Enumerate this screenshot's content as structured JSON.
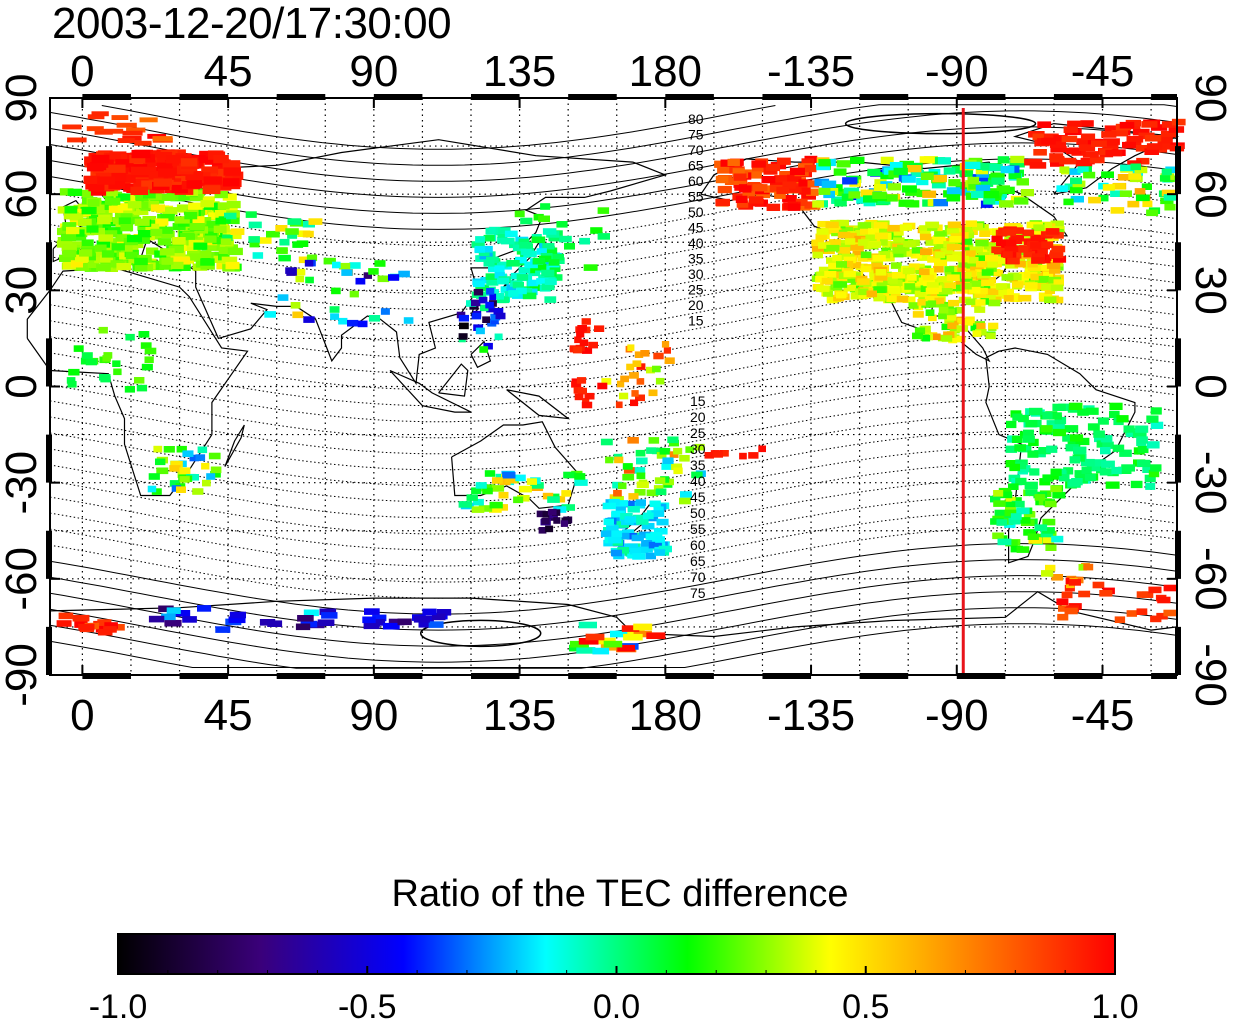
{
  "title": "2003-12-20/17:30:00",
  "map": {
    "x_ticks": [
      "0",
      "45",
      "90",
      "135",
      "180",
      "-135",
      "-90",
      "-45"
    ],
    "x_tick_lons": [
      0,
      45,
      90,
      135,
      180,
      225,
      270,
      315
    ],
    "y_ticks_left": [
      "90",
      "60",
      "30",
      "0",
      "-30",
      "-60",
      "-90"
    ],
    "y_ticks_right": [
      "90",
      "60",
      "30",
      "0",
      "-30",
      "-60",
      "-90"
    ],
    "y_tick_lats": [
      90,
      60,
      30,
      0,
      -30,
      -60,
      -90
    ],
    "lon_range": [
      -10,
      338
    ],
    "lat_range": [
      -90,
      90
    ],
    "marker_line_lon": 272,
    "marker_line_color": "#e8141b",
    "contour_labels_north": [
      "80",
      "75",
      "70",
      "65",
      "60",
      "55",
      "50",
      "45",
      "40",
      "35",
      "30",
      "25",
      "20",
      "15"
    ],
    "contour_labels_south": [
      "15",
      "20",
      "25",
      "30",
      "35",
      "40",
      "45",
      "50",
      "55",
      "60",
      "65",
      "70",
      "75"
    ]
  },
  "colorbar": {
    "title": "Ratio of the TEC difference",
    "ticks": [
      "-1.0",
      "-0.5",
      "0.0",
      "0.5",
      "1.0"
    ],
    "range": [
      -1.0,
      1.0
    ],
    "colors": [
      "#000000",
      "#3a007a",
      "#0000ff",
      "#00ffff",
      "#00ff00",
      "#ffff00",
      "#ff8000",
      "#ff0000"
    ]
  }
}
